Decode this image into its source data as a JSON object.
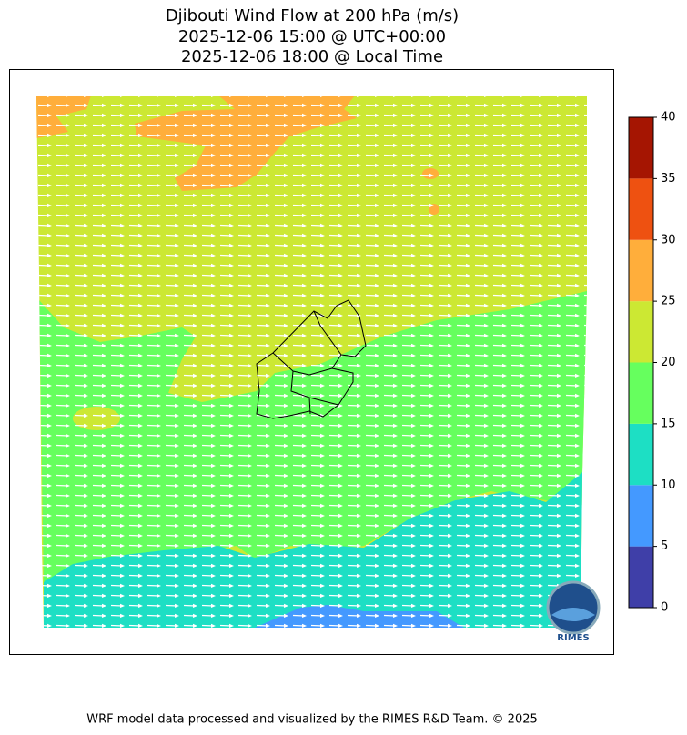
{
  "title": [
    "Djibouti Wind Flow at 200 hPa (m/s)",
    "2025-12-06 15:00 @ UTC+00:00",
    "2025-12-06 18:00 @ Local Time"
  ],
  "colorbar": {
    "ticks": [
      0,
      5,
      10,
      15,
      20,
      25,
      30,
      35,
      40
    ],
    "colors": [
      "#3f3fa8",
      "#4499ff",
      "#1ddfc4",
      "#66ff5e",
      "#cce833",
      "#ffae3b",
      "#ee5111",
      "#a51502"
    ]
  },
  "logo": "RIMES",
  "footer": "WRF model data processed and visualized by the RIMES R&D Team. © 2025"
}
